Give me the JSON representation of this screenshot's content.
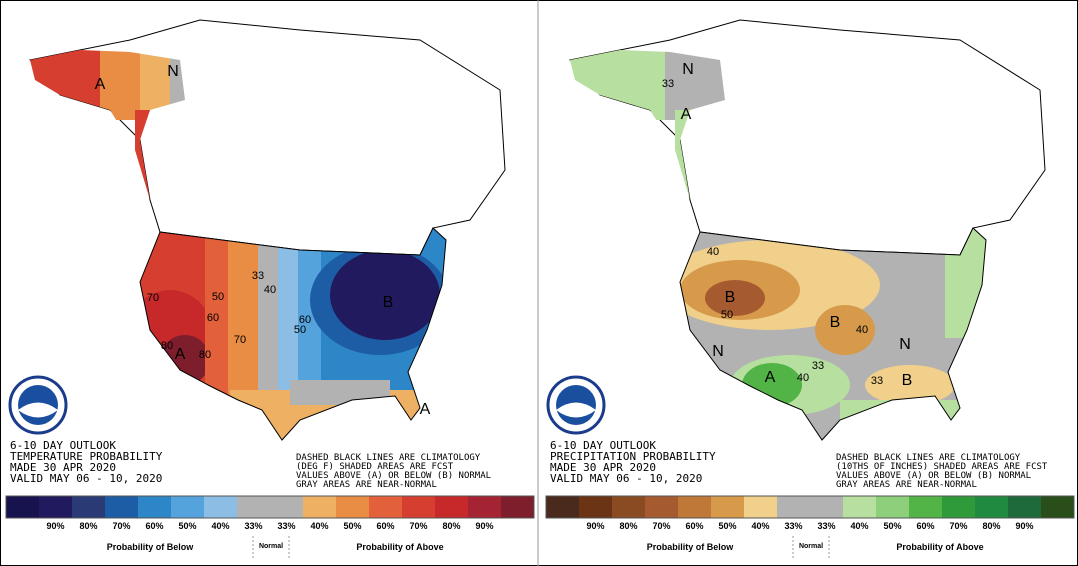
{
  "panels": [
    {
      "title_lines": [
        "6-10 DAY OUTLOOK",
        "TEMPERATURE PROBABILITY",
        "MADE  30 APR 2020",
        "VALID  MAY 06 - 10, 2020"
      ],
      "note_lines": [
        "DASHED BLACK LINES ARE CLIMATOLOGY",
        "(DEG F) SHADED AREAS ARE FCST",
        "VALUES ABOVE (A) OR BELOW (B) NORMAL",
        "GRAY AREAS ARE NEAR-NORMAL"
      ],
      "legend": {
        "below_ticks": [
          "90%",
          "80%",
          "70%",
          "60%",
          "50%",
          "40%",
          "33%"
        ],
        "above_ticks": [
          "33%",
          "40%",
          "50%",
          "60%",
          "70%",
          "80%",
          "90%"
        ],
        "below_label": "Probability of Below",
        "normal_label": "Normal",
        "above_label": "Probability of Above",
        "colors": [
          "#17134f",
          "#221a5e",
          "#2a3a75",
          "#1d5da6",
          "#2d86c7",
          "#55a3dc",
          "#8bbde5",
          "#b2b2b2",
          "#b2b2b2",
          "#eeb163",
          "#e98c44",
          "#e2603a",
          "#d63e2f",
          "#c7292b",
          "#a52433",
          "#7e1e2c"
        ]
      },
      "map_labels": [
        "A",
        "N",
        "33",
        "50",
        "60",
        "70",
        "80",
        "A",
        "80",
        "70",
        "40",
        "50",
        "B",
        "60",
        "A"
      ]
    },
    {
      "title_lines": [
        "6-10 DAY OUTLOOK",
        "PRECIPITATION PROBABILITY",
        "MADE  30 APR 2020",
        "VALID  MAY 06 - 10, 2020"
      ],
      "note_lines": [
        "DASHED BLACK LINES ARE CLIMATOLOGY",
        "(10THS OF INCHES) SHADED AREAS ARE FCST",
        "VALUES ABOVE (A) OR BELOW (B) NORMAL",
        "GRAY AREAS ARE NEAR-NORMAL"
      ],
      "legend": {
        "below_ticks": [
          "90%",
          "80%",
          "70%",
          "60%",
          "50%",
          "40%",
          "33%"
        ],
        "above_ticks": [
          "33%",
          "40%",
          "50%",
          "60%",
          "70%",
          "80%",
          "90%"
        ],
        "below_label": "Probability of Below",
        "normal_label": "Normal",
        "above_label": "Probability of Above",
        "colors": [
          "#4a2a1c",
          "#6b3414",
          "#8a4a22",
          "#a65a30",
          "#c07838",
          "#d69a4a",
          "#f0d08a",
          "#b2b2b2",
          "#b2b2b2",
          "#b7dfa0",
          "#8ecf7c",
          "#52b447",
          "#2f9a3a",
          "#1f8a40",
          "#1f6a3a",
          "#2a4e1a"
        ]
      },
      "map_labels": [
        "N",
        "33",
        "A",
        "40",
        "B",
        "50",
        "B",
        "40",
        "N",
        "A",
        "40",
        "33",
        "N",
        "33",
        "B"
      ]
    }
  ]
}
